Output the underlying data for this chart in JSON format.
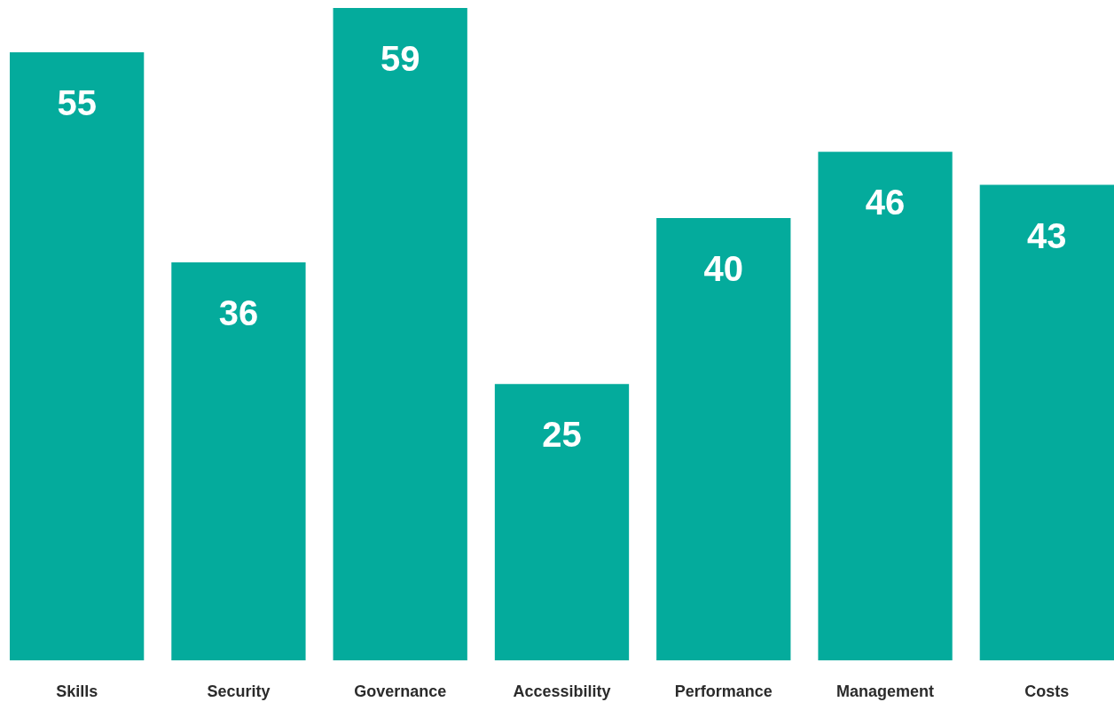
{
  "chart_data": {
    "type": "bar",
    "categories": [
      "Skills",
      "Security",
      "Governance",
      "Accessibility",
      "Performance",
      "Management",
      "Costs"
    ],
    "values": [
      55,
      36,
      59,
      25,
      40,
      46,
      43
    ],
    "color": "#04ab9c",
    "data_labels": true
  }
}
